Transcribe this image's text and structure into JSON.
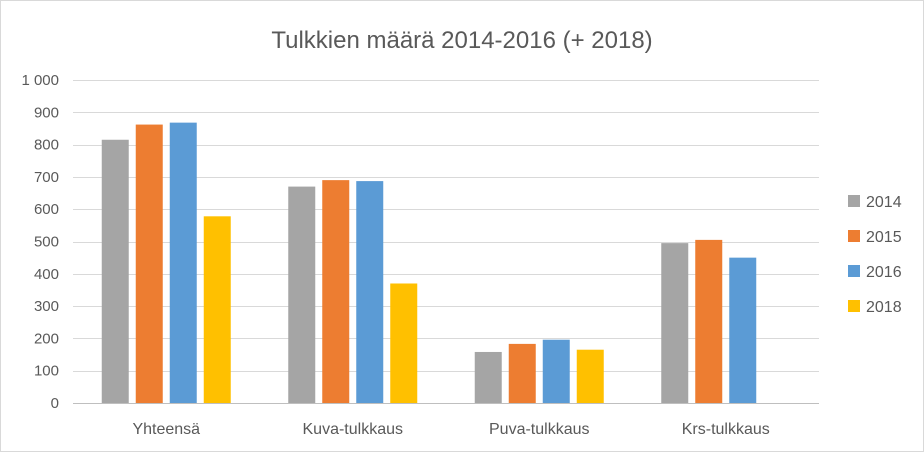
{
  "chart_data": {
    "type": "bar",
    "title": "Tulkkien määrä 2014-2016 (+ 2018)",
    "categories": [
      "Yhteensä",
      "Kuva-tulkkaus",
      "Puva-tulkkaus",
      "Krs-tulkkaus"
    ],
    "series": [
      {
        "name": "2014",
        "color": "#a5a5a5",
        "values": [
          815,
          670,
          158,
          495
        ]
      },
      {
        "name": "2015",
        "color": "#ed7d31",
        "values": [
          862,
          690,
          183,
          505
        ]
      },
      {
        "name": "2016",
        "color": "#5b9bd5",
        "values": [
          868,
          687,
          196,
          450
        ]
      },
      {
        "name": "2018",
        "color": "#ffc000",
        "values": [
          578,
          370,
          165,
          null
        ]
      }
    ],
    "ylim": [
      0,
      1000
    ],
    "yticks": [
      0,
      100,
      200,
      300,
      400,
      500,
      600,
      700,
      800,
      900,
      1000
    ],
    "ytick_labels": [
      "0",
      "100",
      "200",
      "300",
      "400",
      "500",
      "600",
      "700",
      "800",
      "900",
      "1 000"
    ],
    "grid": true,
    "legend_position": "right"
  }
}
